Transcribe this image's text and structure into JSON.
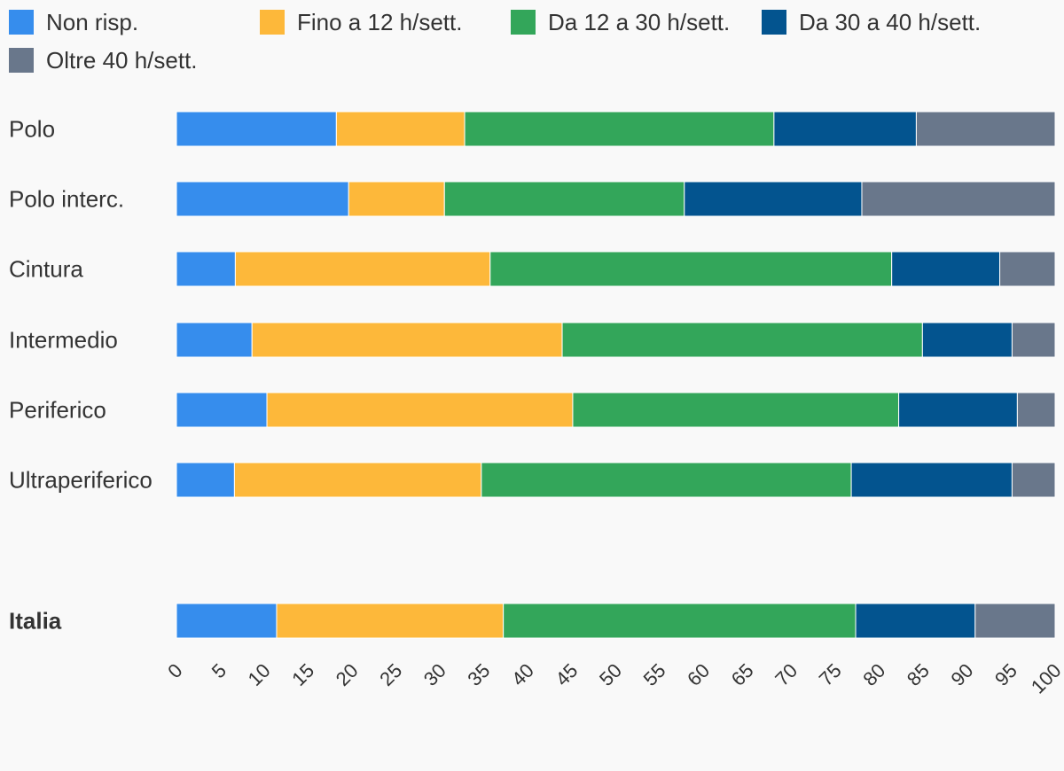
{
  "chart_data": {
    "type": "bar",
    "orientation": "horizontal",
    "stacked": true,
    "title": "",
    "xlabel": "",
    "ylabel": "",
    "xlim": [
      0,
      100
    ],
    "xticks": [
      "0",
      "5",
      "10",
      "15",
      "20",
      "25",
      "30",
      "35",
      "40",
      "45",
      "50",
      "55",
      "60",
      "65",
      "70",
      "75",
      "80",
      "85",
      "90",
      "95",
      "100"
    ],
    "categories": [
      "Polo",
      "Polo interc.",
      "Cintura",
      "Intermedio",
      "Periferico",
      "Ultraperiferico",
      "Italia"
    ],
    "highlighted_category": "Italia",
    "legend_position": "top",
    "series": [
      {
        "name": "Non risp.",
        "color": "#368ded",
        "values": [
          18.2,
          19.6,
          6.7,
          8.6,
          10.3,
          6.6,
          11.4
        ]
      },
      {
        "name": "Fino a 12 h/sett.",
        "color": "#fdb83a",
        "values": [
          14.6,
          10.9,
          29.0,
          35.3,
          34.8,
          28.1,
          25.8
        ]
      },
      {
        "name": "Da 12 a 30 h/sett.",
        "color": "#33a65a",
        "values": [
          35.2,
          27.3,
          45.7,
          41.0,
          37.1,
          42.1,
          40.1
        ]
      },
      {
        "name": "Da 30 a 40 h/sett.",
        "color": "#03548f",
        "values": [
          16.2,
          20.2,
          12.3,
          10.2,
          13.5,
          18.3,
          13.6
        ]
      },
      {
        "name": "Oltre 40 h/sett.",
        "color": "#69778b",
        "values": [
          15.8,
          22.0,
          6.3,
          4.9,
          4.3,
          4.9,
          9.1
        ]
      }
    ]
  }
}
